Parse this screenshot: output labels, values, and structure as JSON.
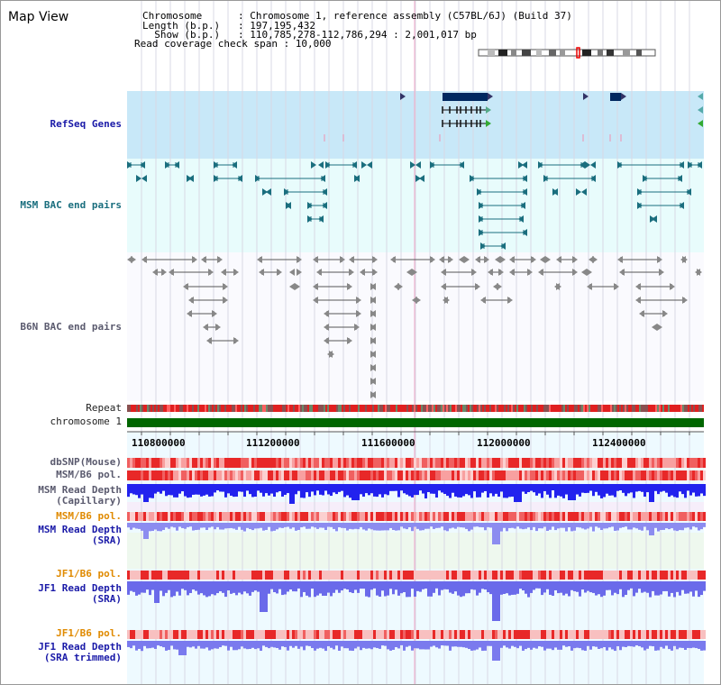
{
  "window": {
    "title": "Map View"
  },
  "header": {
    "chromosome": "Chromosome      : Chromosome 1, reference assembly (C57BL/6J) (Build 37)",
    "length": "Length (b.p.)   : 197,195,432",
    "show": "  Show (b.p.)   : 110,785,278-112,786,294 : 2,001,017 bp",
    "coverage": "Read coverage check span : 10,000"
  },
  "tracks": {
    "refseq": "RefSeq Genes",
    "msm_bac": "MSM BAC end pairs",
    "b6n_bac": "B6N BAC end pairs",
    "repeat": "Repeat",
    "chromosome": "chromosome 1",
    "dbsnp": "dbSNP(Mouse)",
    "msm_b6_pol_1": "MSM/B6 pol.",
    "msm_read_depth_cap_1": "MSM Read Depth",
    "msm_read_depth_cap_2": "(Capillary)",
    "msm_b6_pol_2": "MSM/B6 pol.",
    "msm_read_depth_sra_1": "MSM Read Depth",
    "msm_read_depth_sra_2": "(SRA)",
    "jf1_b6_pol_1": "JF1/B6 pol.",
    "jf1_read_depth_sra_1": "JF1 Read Depth",
    "jf1_read_depth_sra_2": "(SRA)",
    "jf1_b6_pol_2": "JF1/B6 pol.",
    "jf1_read_depth_trim_1": "JF1 Read Depth",
    "jf1_read_depth_trim_2": "(SRA trimmed)"
  },
  "axis": {
    "ticks": [
      "110800000",
      "111200000",
      "111600000",
      "112000000",
      "112400000"
    ]
  },
  "colors": {
    "refseq_bg": "#c8e8f8",
    "bac_bg": "#e8fcfc",
    "chromosome_bar": "#006600",
    "refseq_gene": "#002860",
    "msm_bac": "#1a6e7e",
    "b6n_bac": "#666666",
    "read_depth": "#2a2aee",
    "polymorphism": "#e83030"
  }
}
